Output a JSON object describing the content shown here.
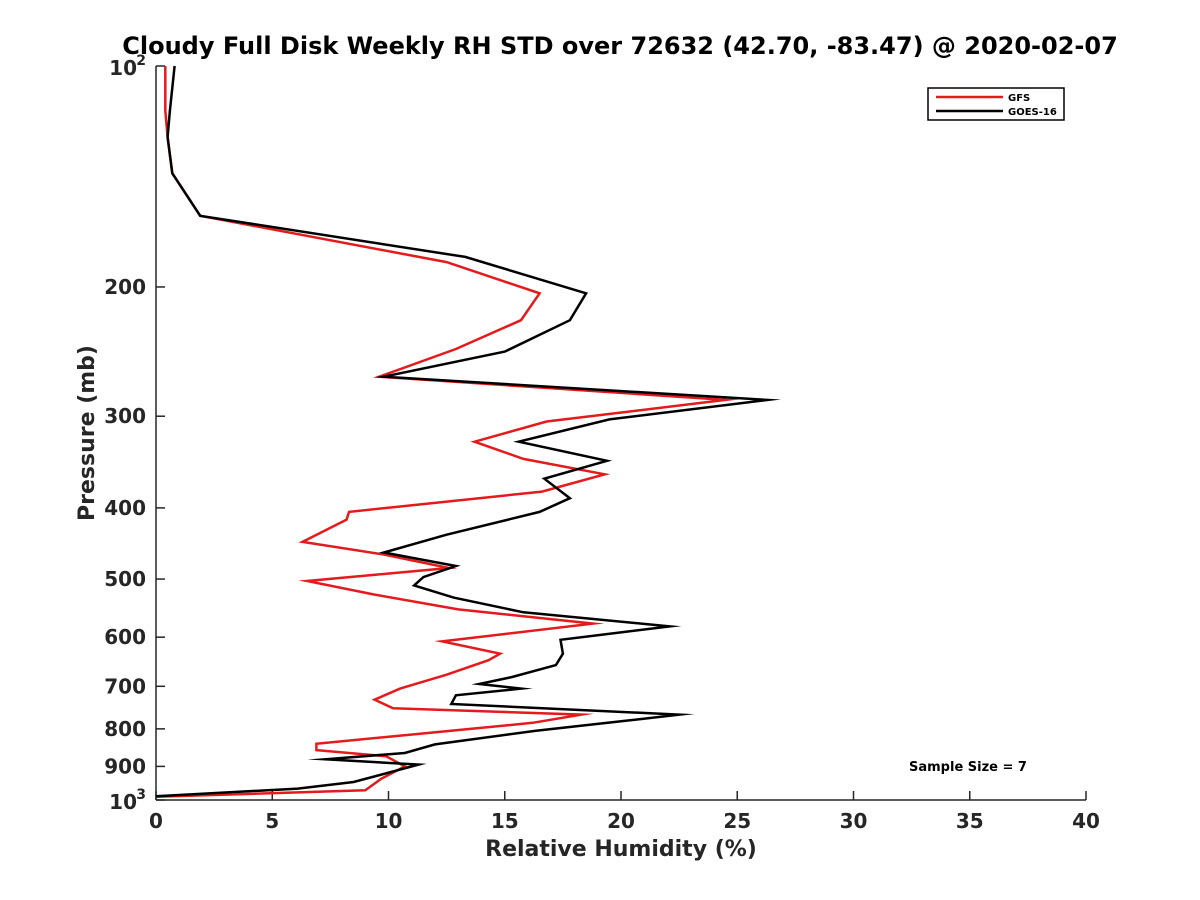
{
  "chart_data": {
    "type": "line",
    "title": "Cloudy Full Disk Weekly RH STD over 72632 (42.70, -83.47) @ 2020-02-07",
    "xlabel": "Relative Humidity (%)",
    "ylabel": "Pressure (mb)",
    "xlim": [
      0,
      40
    ],
    "ylim": [
      100,
      1000
    ],
    "y_scale": "log",
    "y_reversed": true,
    "x_ticks": [
      "0",
      "5",
      "10",
      "15",
      "20",
      "25",
      "30",
      "35",
      "40"
    ],
    "y_ticks": [
      {
        "value": 100,
        "base": "10",
        "exp": "2"
      },
      {
        "value": 200,
        "label": "200"
      },
      {
        "value": 300,
        "label": "300"
      },
      {
        "value": 400,
        "label": "400"
      },
      {
        "value": 500,
        "label": "500"
      },
      {
        "value": 600,
        "label": "600"
      },
      {
        "value": 700,
        "label": "700"
      },
      {
        "value": 800,
        "label": "800"
      },
      {
        "value": 900,
        "label": "900"
      },
      {
        "value": 1000,
        "base": "10",
        "exp": "3"
      }
    ],
    "grid": false,
    "legend_position": "top-right",
    "annotation": "Sample Size = 7",
    "series": [
      {
        "name": "GFS",
        "color": "#e41a1c",
        "points": [
          [
            0.4,
            100
          ],
          [
            0.4,
            115
          ],
          [
            0.5,
            125
          ],
          [
            0.7,
            140
          ],
          [
            1.9,
            160
          ],
          [
            12.5,
            185
          ],
          [
            16.5,
            204
          ],
          [
            15.7,
            222
          ],
          [
            12.9,
            243
          ],
          [
            9.6,
            265
          ],
          [
            24.5,
            285
          ],
          [
            16.8,
            305
          ],
          [
            13.7,
            325
          ],
          [
            15.8,
            343
          ],
          [
            19.3,
            360
          ],
          [
            16.6,
            380
          ],
          [
            8.3,
            405
          ],
          [
            8.2,
            415
          ],
          [
            6.3,
            445
          ],
          [
            9.8,
            463
          ],
          [
            12.6,
            483
          ],
          [
            6.5,
            503
          ],
          [
            9.4,
            525
          ],
          [
            13.0,
            550
          ],
          [
            18.8,
            575
          ],
          [
            12.3,
            608
          ],
          [
            14.8,
            632
          ],
          [
            14.3,
            645
          ],
          [
            12.5,
            675
          ],
          [
            10.5,
            705
          ],
          [
            9.4,
            730
          ],
          [
            10.2,
            750
          ],
          [
            18.3,
            765
          ],
          [
            16.2,
            785
          ],
          [
            11.8,
            810
          ],
          [
            6.9,
            838
          ],
          [
            6.9,
            855
          ],
          [
            9.9,
            872
          ],
          [
            10.7,
            900
          ],
          [
            9.7,
            935
          ],
          [
            9.0,
            970
          ],
          [
            0.0,
            990
          ]
        ]
      },
      {
        "name": "GOES-16",
        "color": "#000000",
        "points": [
          [
            0.8,
            100
          ],
          [
            0.6,
            115
          ],
          [
            0.5,
            125
          ],
          [
            0.7,
            140
          ],
          [
            1.9,
            160
          ],
          [
            13.3,
            182
          ],
          [
            18.5,
            204
          ],
          [
            17.8,
            222
          ],
          [
            15.0,
            245
          ],
          [
            9.8,
            265
          ],
          [
            26.3,
            285
          ],
          [
            19.5,
            303
          ],
          [
            15.6,
            325
          ],
          [
            19.4,
            345
          ],
          [
            16.7,
            365
          ],
          [
            17.8,
            388
          ],
          [
            16.5,
            405
          ],
          [
            12.5,
            435
          ],
          [
            9.8,
            460
          ],
          [
            12.9,
            480
          ],
          [
            11.5,
            497
          ],
          [
            11.1,
            510
          ],
          [
            12.8,
            530
          ],
          [
            15.8,
            555
          ],
          [
            22.1,
            580
          ],
          [
            17.4,
            605
          ],
          [
            17.5,
            632
          ],
          [
            17.2,
            655
          ],
          [
            15.3,
            680
          ],
          [
            13.9,
            695
          ],
          [
            15.7,
            705
          ],
          [
            12.9,
            720
          ],
          [
            12.7,
            740
          ],
          [
            22.5,
            765
          ],
          [
            20.2,
            780
          ],
          [
            16.3,
            805
          ],
          [
            12.0,
            840
          ],
          [
            10.7,
            863
          ],
          [
            7.3,
            880
          ],
          [
            11.3,
            895
          ],
          [
            8.5,
            945
          ],
          [
            6.1,
            965
          ],
          [
            0.0,
            988
          ]
        ]
      }
    ]
  }
}
